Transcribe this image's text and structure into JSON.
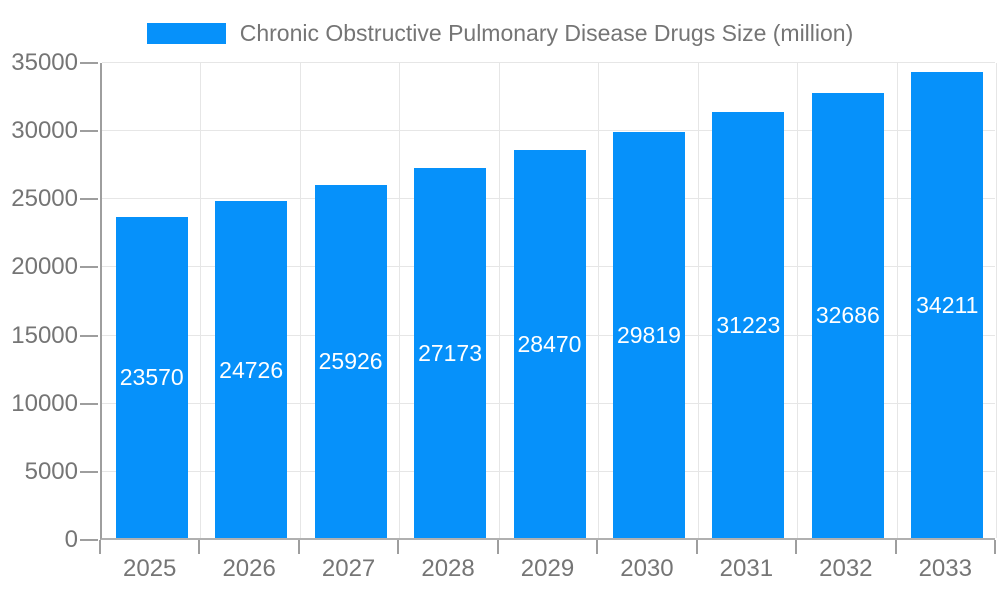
{
  "legend": {
    "label": "Chronic Obstructive Pulmonary Disease Drugs Size (million)"
  },
  "colors": {
    "bar": "#0691fa",
    "bar_label": "#ffffff",
    "axis_text": "#757575",
    "grid_line": "#e6e6e6",
    "axis_line": "#9e9e9e",
    "background": "#ffffff"
  },
  "chart_data": {
    "type": "bar",
    "title": "Chronic Obstructive Pulmonary Disease Drugs Size (million)",
    "series_name": "Chronic Obstructive Pulmonary Disease Drugs Size (million)",
    "categories": [
      "2025",
      "2026",
      "2027",
      "2028",
      "2029",
      "2030",
      "2031",
      "2032",
      "2033"
    ],
    "values": [
      23570,
      24726,
      25926,
      27173,
      28470,
      29819,
      31223,
      32686,
      34211
    ],
    "xlabel": "",
    "ylabel": "",
    "ylim": [
      0,
      35000
    ],
    "ytick_step": 5000,
    "yticks": [
      0,
      5000,
      10000,
      15000,
      20000,
      25000,
      30000,
      35000
    ],
    "grid": true,
    "legend_position": "top",
    "bar_labels_inside": true
  }
}
